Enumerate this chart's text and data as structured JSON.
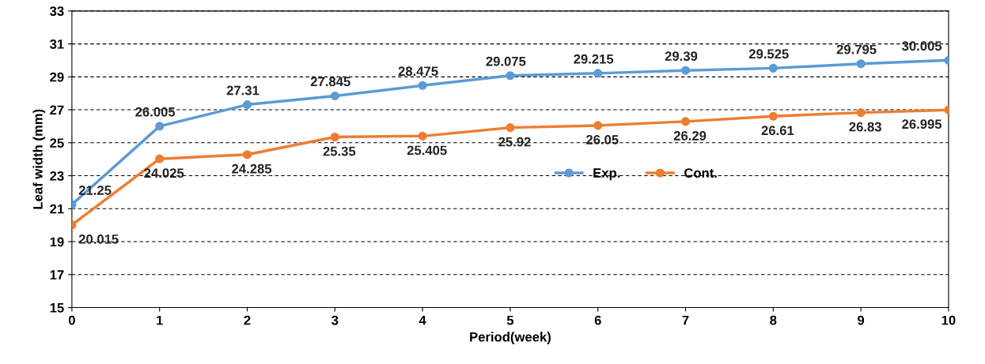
{
  "chart_data": {
    "type": "line",
    "xlabel": "Period(week)",
    "ylabel": "Leaf width (mm)",
    "x": [
      0,
      1,
      2,
      3,
      4,
      5,
      6,
      7,
      8,
      9,
      10
    ],
    "series": [
      {
        "name": "Exp.",
        "color": "#5b9bd5",
        "values": [
          21.25,
          26.005,
          27.31,
          27.845,
          28.475,
          29.075,
          29.215,
          29.39,
          29.525,
          29.795,
          30.005
        ]
      },
      {
        "name": "Cont.",
        "color": "#ed7d31",
        "values": [
          20.015,
          24.025,
          24.285,
          25.35,
          25.405,
          25.92,
          26.05,
          26.29,
          26.61,
          26.83,
          26.995
        ]
      }
    ],
    "xlim": [
      0,
      10
    ],
    "xticks": [
      0,
      1,
      2,
      3,
      4,
      5,
      6,
      7,
      8,
      9,
      10
    ],
    "ylim": [
      15,
      33
    ],
    "yticks": [
      15,
      17,
      19,
      21,
      23,
      25,
      27,
      29,
      31,
      33
    ],
    "grid": "y",
    "legend": "center right",
    "marker": "circle",
    "line_style": "solid",
    "data_labels": true
  }
}
